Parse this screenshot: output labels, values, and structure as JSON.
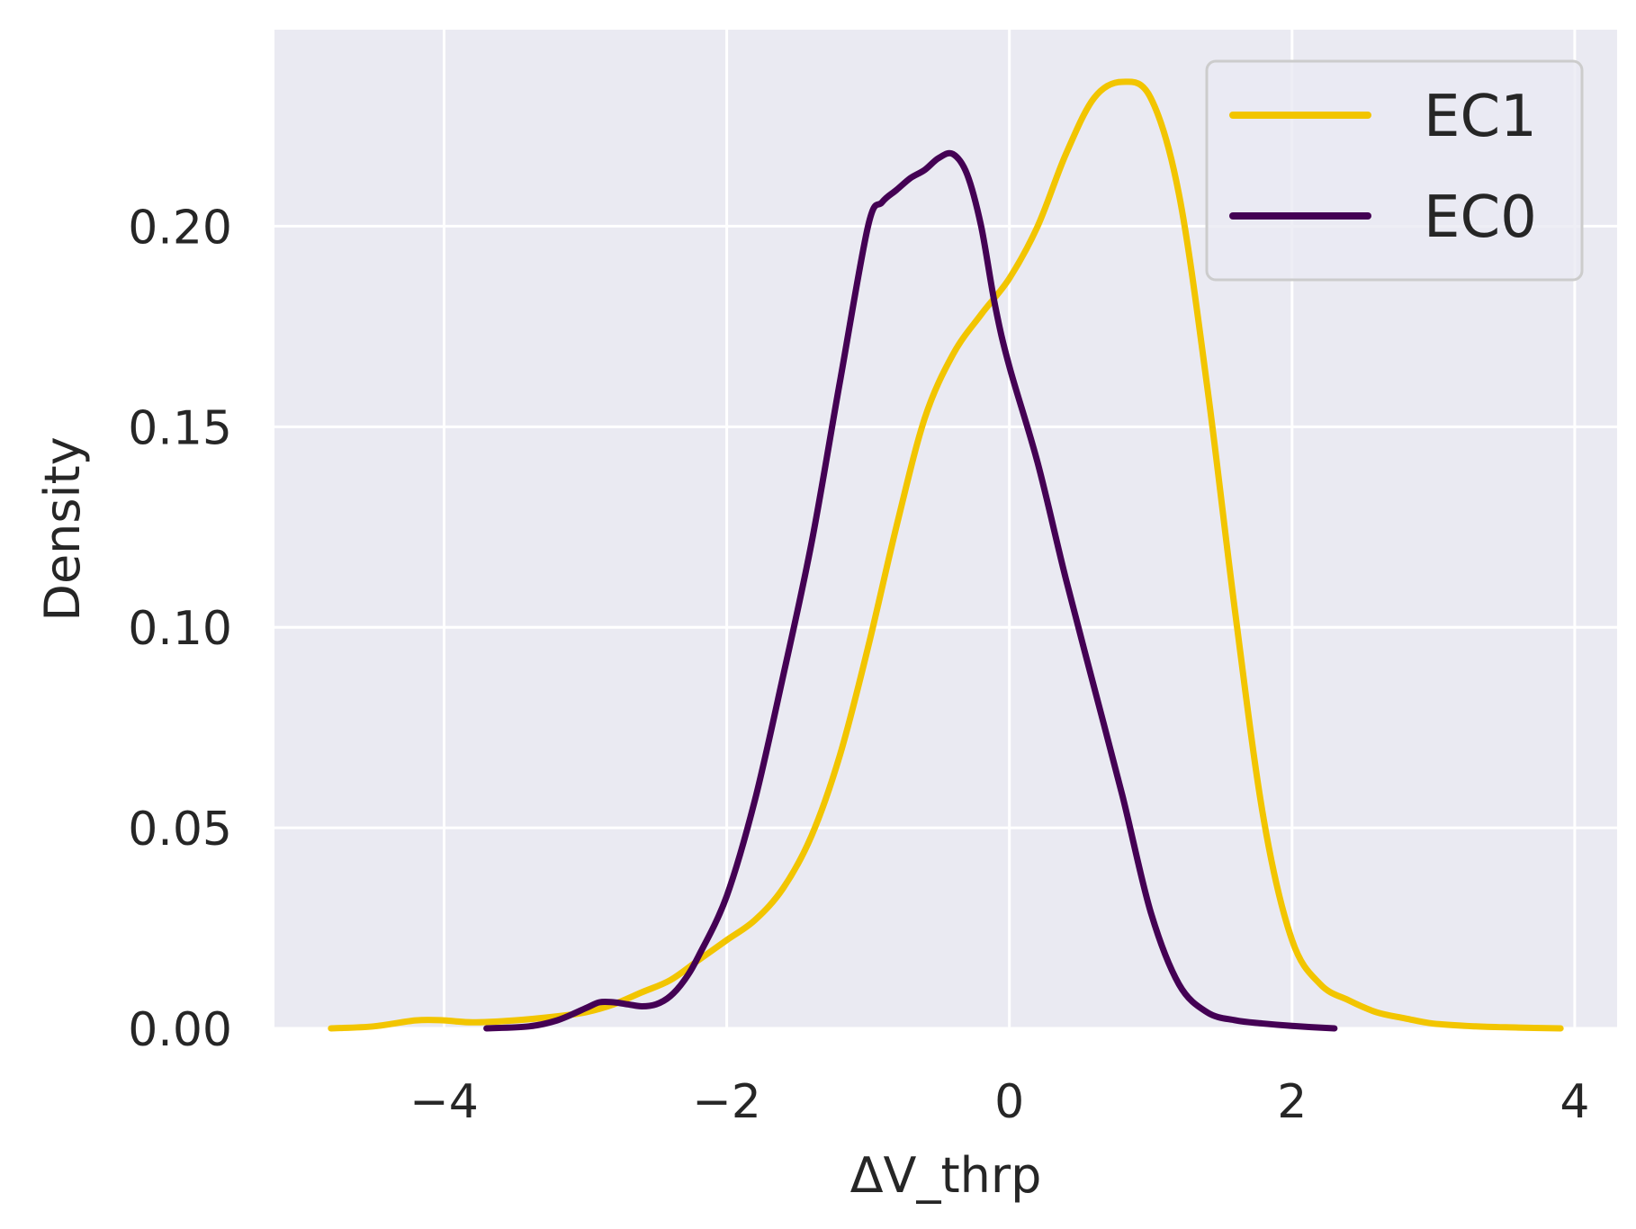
{
  "chart_data": {
    "type": "line",
    "title": "",
    "xlabel": "ΔV_thrp",
    "ylabel": "Density",
    "xlim": [
      -5.2,
      4.3
    ],
    "ylim": [
      0,
      0.249
    ],
    "xticks": [
      -4,
      -2,
      0,
      2,
      4
    ],
    "xtick_labels": [
      "−4",
      "−2",
      "0",
      "2",
      "4"
    ],
    "yticks": [
      0.0,
      0.05,
      0.1,
      0.15,
      0.2
    ],
    "ytick_labels": [
      "0.00",
      "0.05",
      "0.10",
      "0.15",
      "0.20"
    ],
    "grid": true,
    "legend_position": "top-right",
    "series": [
      {
        "name": "EC1",
        "color": "#f2c500",
        "x": [
          -4.8,
          -4.5,
          -4.2,
          -4.0,
          -3.8,
          -3.5,
          -3.2,
          -3.0,
          -2.8,
          -2.6,
          -2.4,
          -2.2,
          -2.0,
          -1.8,
          -1.6,
          -1.4,
          -1.2,
          -1.0,
          -0.8,
          -0.6,
          -0.4,
          -0.2,
          0.0,
          0.2,
          0.4,
          0.6,
          0.8,
          1.0,
          1.2,
          1.4,
          1.6,
          1.8,
          2.0,
          2.2,
          2.4,
          2.6,
          2.8,
          3.0,
          3.3,
          3.6,
          3.9
        ],
        "y": [
          0.0,
          0.0005,
          0.002,
          0.002,
          0.0015,
          0.002,
          0.003,
          0.004,
          0.006,
          0.009,
          0.012,
          0.017,
          0.022,
          0.027,
          0.035,
          0.048,
          0.068,
          0.095,
          0.125,
          0.152,
          0.168,
          0.178,
          0.187,
          0.2,
          0.218,
          0.232,
          0.236,
          0.232,
          0.208,
          0.16,
          0.103,
          0.052,
          0.022,
          0.011,
          0.007,
          0.004,
          0.0025,
          0.0012,
          0.0005,
          0.0002,
          0.0
        ]
      },
      {
        "name": "EC0",
        "color": "#440154",
        "x": [
          -3.7,
          -3.4,
          -3.2,
          -3.0,
          -2.9,
          -2.8,
          -2.7,
          -2.6,
          -2.5,
          -2.4,
          -2.3,
          -2.2,
          -2.0,
          -1.8,
          -1.6,
          -1.4,
          -1.2,
          -1.0,
          -0.9,
          -0.8,
          -0.7,
          -0.6,
          -0.5,
          -0.4,
          -0.3,
          -0.2,
          -0.1,
          0.0,
          0.2,
          0.4,
          0.6,
          0.8,
          1.0,
          1.2,
          1.4,
          1.6,
          1.8,
          2.0,
          2.3
        ],
        "y": [
          0.0,
          0.0005,
          0.002,
          0.005,
          0.0065,
          0.0065,
          0.006,
          0.0055,
          0.006,
          0.008,
          0.012,
          0.018,
          0.033,
          0.057,
          0.088,
          0.121,
          0.161,
          0.2,
          0.206,
          0.209,
          0.212,
          0.214,
          0.217,
          0.218,
          0.213,
          0.2,
          0.18,
          0.165,
          0.141,
          0.112,
          0.085,
          0.058,
          0.029,
          0.011,
          0.004,
          0.002,
          0.0012,
          0.0006,
          0.0
        ]
      }
    ]
  }
}
